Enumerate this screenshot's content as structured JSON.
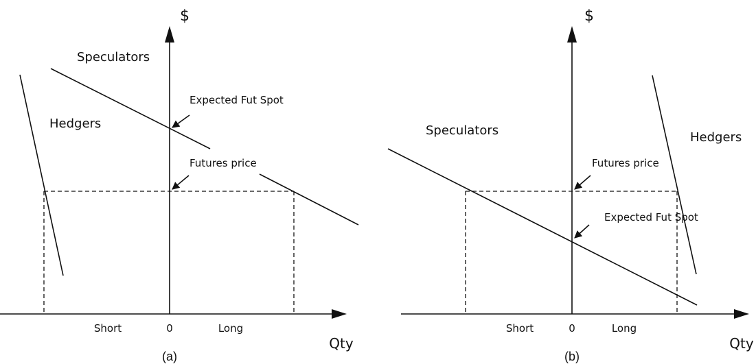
{
  "panel_a": {
    "currency_label": "$",
    "speculators_label": "Speculators",
    "hedgers_label": "Hedgers",
    "expected_spot_label": "Expected Fut Spot",
    "futures_price_label": "Futures price",
    "short_label": "Short",
    "zero_label": "0",
    "long_label": "Long",
    "qty_label": "Qty",
    "caption": "(a)"
  },
  "panel_b": {
    "currency_label": "$",
    "speculators_label": "Speculators",
    "hedgers_label": "Hedgers",
    "expected_spot_label": "Expected Fut Spot",
    "futures_price_label": "Futures price",
    "short_label": "Short",
    "zero_label": "0",
    "long_label": "Long",
    "qty_label": "Qty",
    "caption": "(b)"
  }
}
